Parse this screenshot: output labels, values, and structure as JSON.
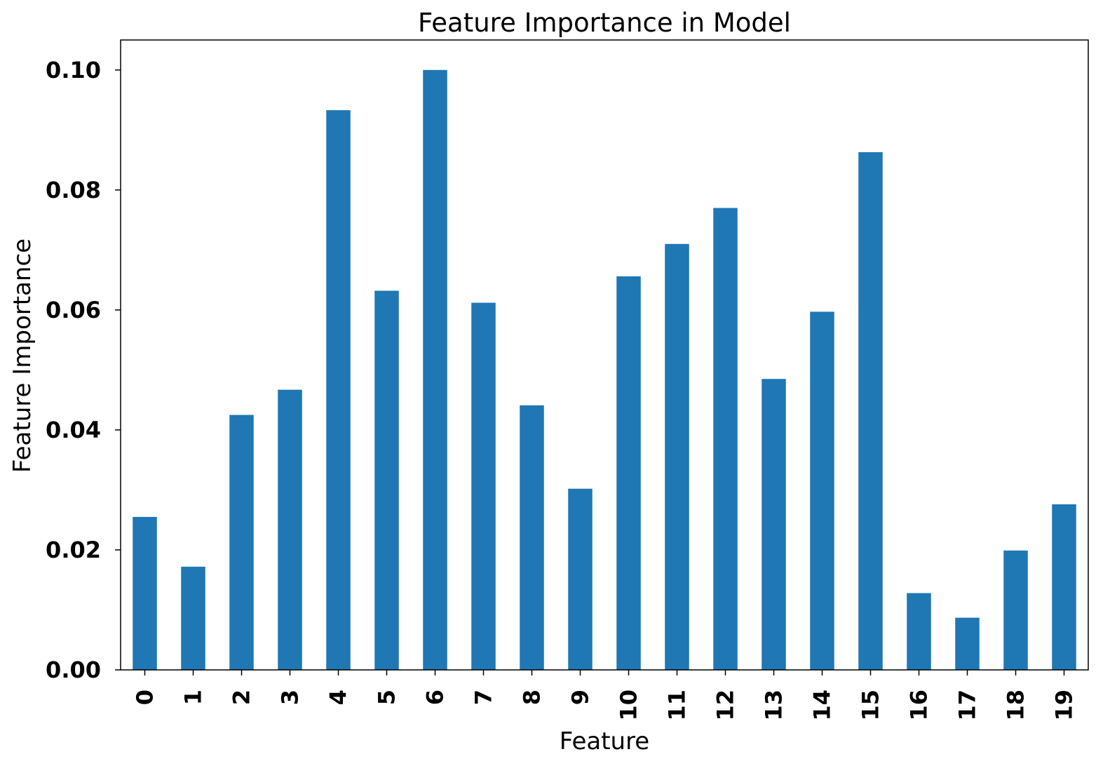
{
  "chart_data": {
    "type": "bar",
    "title": "Feature Importance in Model",
    "xlabel": "Feature",
    "ylabel": "Feature Importance",
    "categories": [
      "0",
      "1",
      "2",
      "3",
      "4",
      "5",
      "6",
      "7",
      "8",
      "9",
      "10",
      "11",
      "12",
      "13",
      "14",
      "15",
      "16",
      "17",
      "18",
      "19"
    ],
    "values": [
      0.0255,
      0.0172,
      0.0425,
      0.0467,
      0.0933,
      0.0632,
      0.1,
      0.0612,
      0.0441,
      0.0302,
      0.0656,
      0.071,
      0.077,
      0.0485,
      0.0597,
      0.0863,
      0.0128,
      0.0087,
      0.0199,
      0.0276
    ],
    "yticks": [
      "0.00",
      "0.02",
      "0.04",
      "0.06",
      "0.08",
      "0.10"
    ],
    "ylim": [
      0,
      0.105
    ],
    "grid": false,
    "bar_color": "#1f77b4"
  }
}
